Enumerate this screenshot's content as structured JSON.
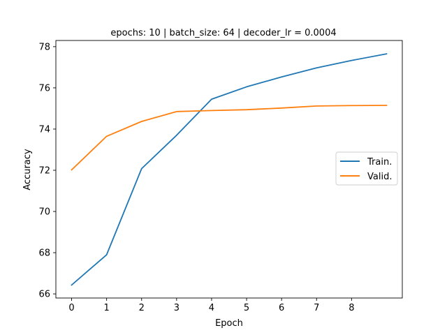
{
  "chart_data": {
    "type": "line",
    "title": "epochs: 10 | batch_size: 64 | decoder_lr = 0.0004",
    "xlabel": "Epoch",
    "ylabel": "Accuracy",
    "xlim": [
      -0.45,
      9.45
    ],
    "ylim": [
      65.8,
      78.3
    ],
    "x_ticks": [
      0,
      1,
      2,
      3,
      4,
      5,
      6,
      7,
      8
    ],
    "y_ticks": [
      66,
      68,
      70,
      72,
      74,
      76,
      78
    ],
    "x": [
      0,
      1,
      2,
      3,
      4,
      5,
      6,
      7,
      8,
      9
    ],
    "series": [
      {
        "name": "Train.",
        "color": "#1f77b4",
        "values": [
          66.43,
          67.9,
          72.08,
          73.7,
          75.45,
          76.05,
          76.53,
          76.97,
          77.33,
          77.65
        ]
      },
      {
        "name": "Valid.",
        "color": "#ff7f0e",
        "values": [
          72.02,
          73.65,
          74.37,
          74.85,
          74.9,
          74.94,
          75.02,
          75.12,
          75.14,
          75.15
        ]
      }
    ],
    "legend_position": "center-right",
    "grid": false
  }
}
